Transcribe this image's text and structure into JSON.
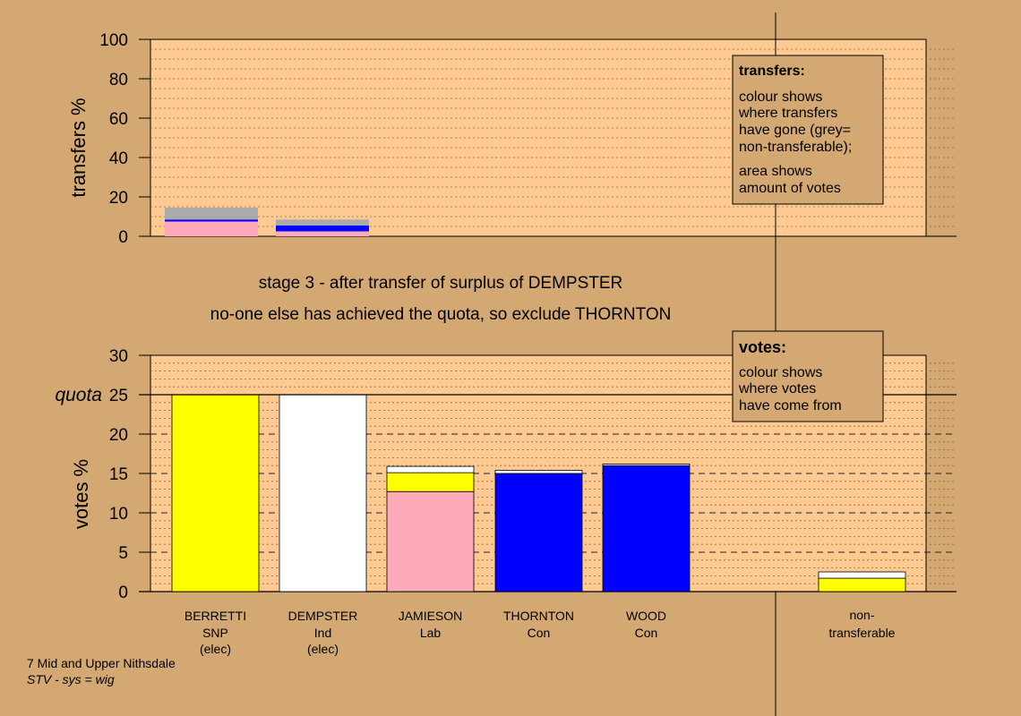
{
  "colors": {
    "background": "#d4a872",
    "plot_background": "#ffc992",
    "yellow": "#ffff00",
    "white": "#ffffff",
    "pink": "#ffaabb",
    "blue": "#0000ff",
    "grey": "#aaaaaa"
  },
  "stage": {
    "line1": "stage 3 - after transfer of surplus of DEMPSTER",
    "line2": "no-one else has achieved the quota, so exclude THORNTON"
  },
  "footer": {
    "line1": "7 Mid and Upper Nithsdale",
    "line2": "STV - sys = wig"
  },
  "transfers_legend": {
    "title": "transfers:",
    "lines": [
      "colour shows",
      "where transfers",
      "have gone (grey=",
      "non-transferable);"
    ],
    "lines2": [
      "area shows",
      "amount of votes"
    ]
  },
  "votes_legend": {
    "title": "votes:",
    "lines": [
      "colour shows",
      "where votes",
      "have come from"
    ]
  },
  "chart_data": [
    {
      "type": "bar",
      "stacked": true,
      "ylabel": "transfers %",
      "ylim": [
        0,
        100
      ],
      "yticks": [
        "0",
        "20",
        "40",
        "60",
        "80",
        "100"
      ],
      "grid": true,
      "bars": [
        {
          "segments": [
            {
              "color": "pink",
              "value": 7.5
            },
            {
              "color": "blue",
              "value": 1
            },
            {
              "color": "grey",
              "value": 6
            }
          ]
        },
        {
          "segments": [
            {
              "color": "pink",
              "value": 2.5
            },
            {
              "color": "blue",
              "value": 3
            },
            {
              "color": "grey",
              "value": 3
            }
          ]
        }
      ]
    },
    {
      "type": "bar",
      "stacked": true,
      "ylabel": "votes %",
      "ylim": [
        0,
        30
      ],
      "yticks": [
        "0",
        "5",
        "10",
        "15",
        "20",
        "25",
        "30"
      ],
      "quota_label": "quota",
      "quota": 25,
      "grid": true,
      "candidates": [
        {
          "name": "BERRETTI",
          "party": "SNP",
          "note": "(elec)",
          "segments": [
            {
              "color": "yellow",
              "value": 25
            }
          ]
        },
        {
          "name": "DEMPSTER",
          "party": "Ind",
          "note": "(elec)",
          "segments": [
            {
              "color": "white",
              "value": 25
            }
          ]
        },
        {
          "name": "JAMIESON",
          "party": "Lab",
          "note": "",
          "segments": [
            {
              "color": "pink",
              "value": 12.7
            },
            {
              "color": "yellow",
              "value": 2.4
            },
            {
              "color": "white",
              "value": 0.8
            }
          ]
        },
        {
          "name": "THORNTON",
          "party": "Con",
          "note": "",
          "segments": [
            {
              "color": "blue",
              "value": 15.0
            },
            {
              "color": "white",
              "value": 0.4
            }
          ]
        },
        {
          "name": "WOOD",
          "party": "Con",
          "note": "",
          "segments": [
            {
              "color": "blue",
              "value": 16.0
            },
            {
              "color": "white",
              "value": 0.2
            }
          ]
        }
      ],
      "nontransferable": {
        "label1": "non-",
        "label2": "transferable",
        "segments": [
          {
            "color": "yellow",
            "value": 1.7
          },
          {
            "color": "white",
            "value": 0.8
          }
        ]
      }
    }
  ]
}
